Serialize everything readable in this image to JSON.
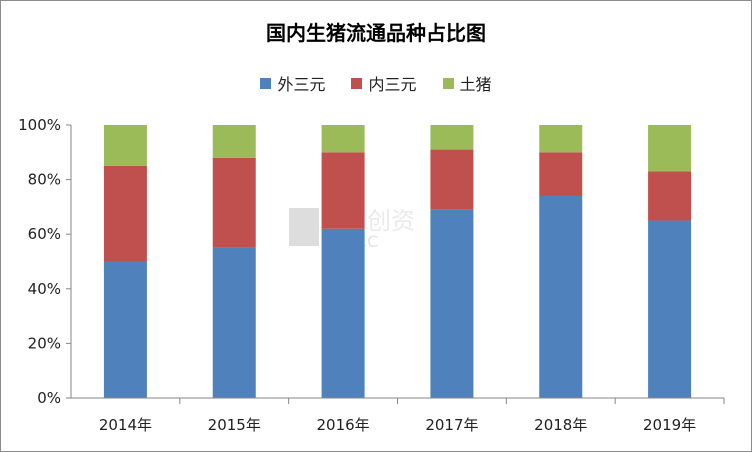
{
  "chart_data": {
    "type": "bar",
    "stacked": true,
    "title": "国内生猪流通品种占比图",
    "xlabel": "",
    "ylabel": "",
    "categories": [
      "2014年",
      "2015年",
      "2016年",
      "2017年",
      "2018年",
      "2019年"
    ],
    "series": [
      {
        "name": "外三元",
        "color": "#4f81bd",
        "values": [
          50,
          55,
          62,
          69,
          74,
          65
        ]
      },
      {
        "name": "内三元",
        "color": "#c0504d",
        "values": [
          35,
          33,
          28,
          22,
          16,
          18
        ]
      },
      {
        "name": "土猪",
        "color": "#9bbb59",
        "values": [
          15,
          12,
          10,
          9,
          10,
          17
        ]
      }
    ],
    "ylim": [
      0,
      100
    ],
    "yticks": [
      "0%",
      "20%",
      "40%",
      "60%",
      "80%",
      "100%"
    ],
    "legend_position": "top",
    "grid": false
  },
  "watermark": {
    "text": "创资",
    "subtext": "I99.C"
  }
}
